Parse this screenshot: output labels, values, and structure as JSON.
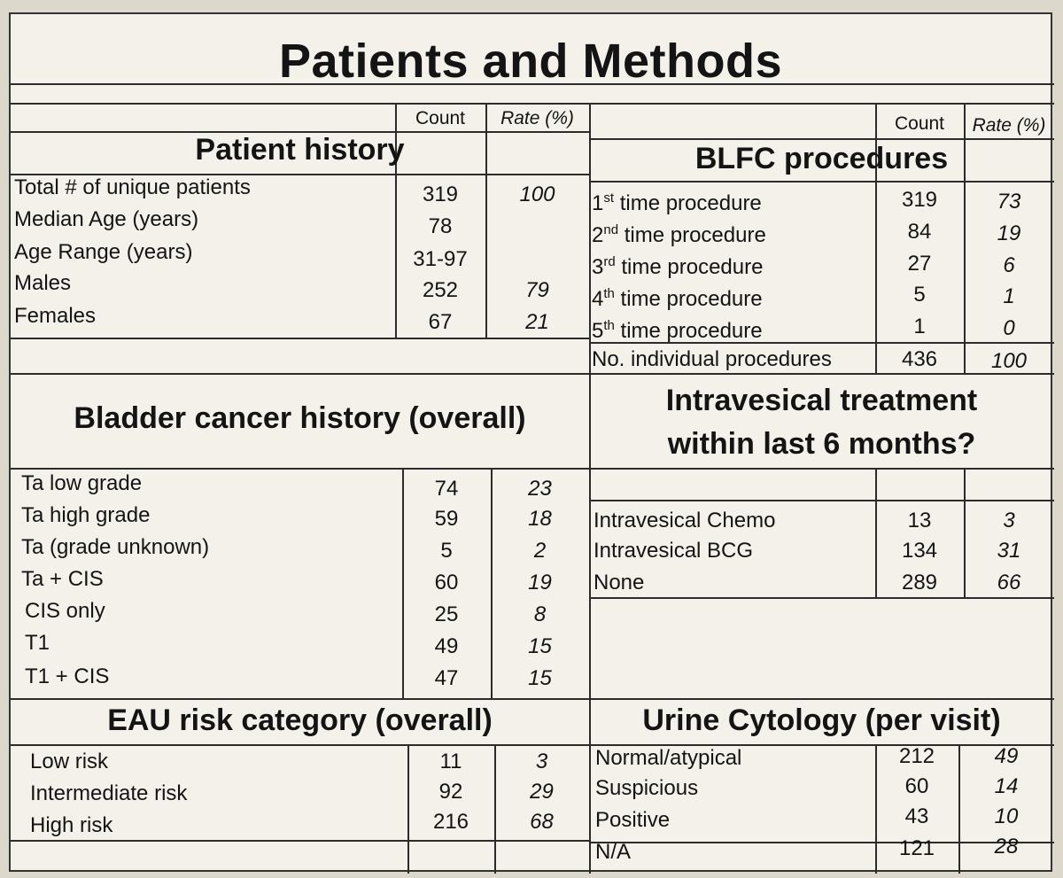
{
  "title": "Patients and Methods",
  "headers": {
    "count": "Count",
    "rate": "Rate (%)"
  },
  "patient_history": {
    "heading": "Patient history",
    "rows": [
      {
        "label": "Total # of unique patients",
        "count": "319",
        "rate": "100"
      },
      {
        "label": "Median Age (years)",
        "count": "78",
        "rate": ""
      },
      {
        "label": "Age Range (years)",
        "count": "31-97",
        "rate": ""
      },
      {
        "label": "Males",
        "count": "252",
        "rate": "79"
      },
      {
        "label": "Females",
        "count": "67",
        "rate": "21"
      }
    ]
  },
  "blfc": {
    "heading": "BLFC procedures",
    "rows": [
      {
        "ord": "1",
        "sup": "st",
        "label": " time procedure",
        "count": "319",
        "rate": "73"
      },
      {
        "ord": "2",
        "sup": "nd",
        "label": " time procedure",
        "count": "84",
        "rate": "19"
      },
      {
        "ord": "3",
        "sup": "rd",
        "label": " time procedure",
        "count": "27",
        "rate": "6"
      },
      {
        "ord": "4",
        "sup": "th",
        "label": " time procedure",
        "count": "5",
        "rate": "1"
      },
      {
        "ord": "5",
        "sup": "th",
        "label": " time procedure",
        "count": "1",
        "rate": "0"
      }
    ],
    "total": {
      "label": "No. individual procedures",
      "count": "436",
      "rate": "100"
    }
  },
  "bladder": {
    "heading": "Bladder cancer history (overall)",
    "rows": [
      {
        "label": "Ta low grade",
        "count": "74",
        "rate": "23"
      },
      {
        "label": "Ta high grade",
        "count": "59",
        "rate": "18"
      },
      {
        "label": "Ta (grade unknown)",
        "count": "5",
        "rate": "2"
      },
      {
        "label": "Ta + CIS",
        "count": "60",
        "rate": "19"
      },
      {
        "label": "CIS only",
        "count": "25",
        "rate": "8"
      },
      {
        "label": "T1",
        "count": "49",
        "rate": "15"
      },
      {
        "label": "T1 + CIS",
        "count": "47",
        "rate": "15"
      }
    ]
  },
  "intravesical": {
    "heading_line1": "Intravesical treatment",
    "heading_line2": "within last 6 months?",
    "rows": [
      {
        "label": "Intravesical Chemo",
        "count": "13",
        "rate": "3"
      },
      {
        "label": "Intravesical BCG",
        "count": "134",
        "rate": "31"
      },
      {
        "label": "None",
        "count": "289",
        "rate": "66"
      }
    ]
  },
  "eau": {
    "heading": "EAU risk category (overall)",
    "rows": [
      {
        "label": "Low risk",
        "count": "11",
        "rate": "3"
      },
      {
        "label": "Intermediate risk",
        "count": "92",
        "rate": "29"
      },
      {
        "label": "High risk",
        "count": "216",
        "rate": "68"
      }
    ]
  },
  "cytology": {
    "heading": "Urine Cytology (per visit)",
    "rows": [
      {
        "label": "Normal/atypical",
        "count": "212",
        "rate": "49"
      },
      {
        "label": "Suspicious",
        "count": "60",
        "rate": "14"
      },
      {
        "label": "Positive",
        "count": "43",
        "rate": "10"
      },
      {
        "label": "N/A",
        "count": "121",
        "rate": "28"
      }
    ]
  }
}
